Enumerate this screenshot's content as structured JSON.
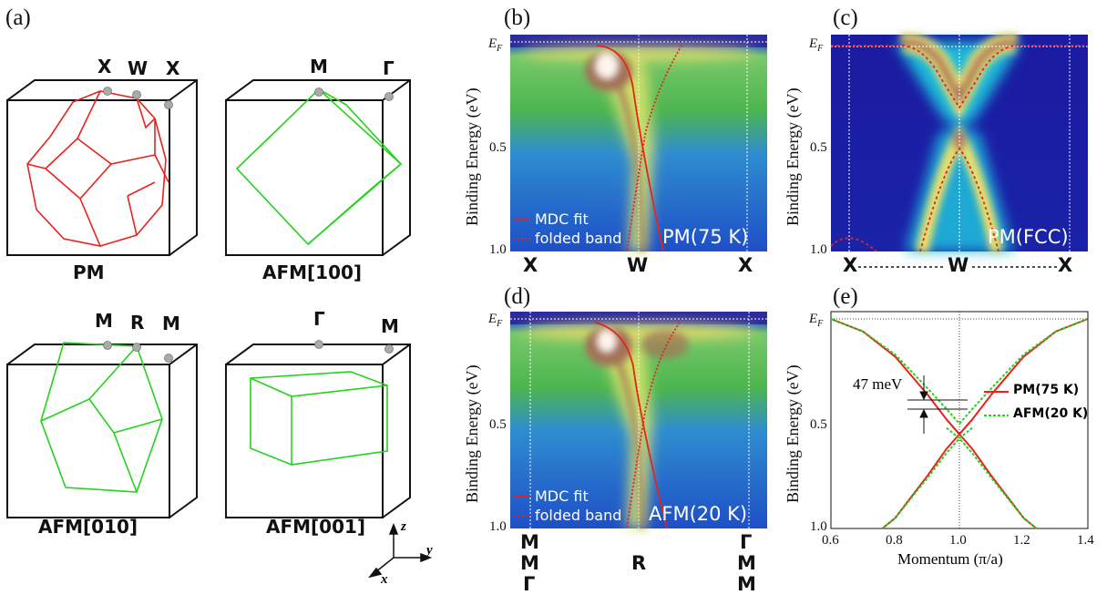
{
  "panels": {
    "a": {
      "letter": "(a)"
    },
    "b": {
      "letter": "(b)",
      "state": "PM(75 K)",
      "legend_fit": "MDC fit",
      "legend_folded": "folded band"
    },
    "c": {
      "letter": "(c)",
      "state": "PM(FCC)"
    },
    "d": {
      "letter": "(d)",
      "state": "AFM(20 K)",
      "legend_fit": "MDC fit",
      "legend_folded": "folded band"
    },
    "e": {
      "letter": "(e)"
    }
  },
  "bz": {
    "pm": {
      "name": "PM",
      "p1": "X",
      "p2": "W",
      "p3": "X"
    },
    "afm100": {
      "name": "AFM[100]",
      "p1": "M",
      "p2": "Γ"
    },
    "afm010": {
      "name": "AFM[010]",
      "p1": "M",
      "p2": "R",
      "p3": "M"
    },
    "afm001": {
      "name": "AFM[001]",
      "p1": "Γ",
      "p2": "M"
    },
    "axes": {
      "z": "z",
      "y": "y",
      "x": "x"
    }
  },
  "arpes": {
    "ylabel": "Binding Energy (eV)",
    "ef_main": "E",
    "ef_sub": "F",
    "tick_05": "0.5",
    "tick_10": "1.0",
    "b_k": {
      "left": "X",
      "mid": "W",
      "right": "X"
    },
    "c_k": {
      "left": "X",
      "mid": "W",
      "right": "X"
    },
    "d_k": {
      "left1": "M",
      "left2": "M",
      "left3": "Γ",
      "mid": "R",
      "right1": "Γ",
      "right2": "M",
      "right3": "M"
    }
  },
  "chart_data": {
    "type": "line",
    "xlabel": "Momentum (π/a)",
    "ylabel": "Binding Energy (eV)",
    "xlim": [
      0.6,
      1.4
    ],
    "ylim": [
      0,
      1.0
    ],
    "x_ticks": [
      "0.6",
      "0.8",
      "1.0",
      "1.2",
      "1.4"
    ],
    "y_ticks": [
      "E",
      "0.5",
      "1.0"
    ],
    "annotation": "47 meV",
    "series": [
      {
        "name": "PM(75 K)",
        "color": "#e8231c",
        "style": "solid",
        "x": [
          0.6,
          0.7,
          0.8,
          0.9,
          0.96,
          1.0,
          1.04,
          1.1,
          1.2,
          1.3,
          1.4
        ],
        "y": [
          0.0,
          0.06,
          0.18,
          0.36,
          0.48,
          0.55,
          0.48,
          0.36,
          0.18,
          0.06,
          0.0
        ]
      },
      {
        "name": "PM(75 K)",
        "color": "#e8231c",
        "style": "solid",
        "x": [
          0.96,
          1.0,
          1.04,
          1.1,
          1.2,
          1.24
        ],
        "y": [
          0.48,
          0.55,
          0.62,
          0.75,
          0.95,
          1.0
        ]
      },
      {
        "name": "AFM(20 K)",
        "color": "#22d31c",
        "style": "dashed",
        "x": [
          0.6,
          0.7,
          0.8,
          0.9,
          0.96,
          1.0,
          1.04,
          1.1,
          1.2,
          1.3,
          1.4
        ],
        "y": [
          0.0,
          0.06,
          0.17,
          0.33,
          0.43,
          0.5,
          0.43,
          0.33,
          0.17,
          0.06,
          0.0
        ]
      }
    ]
  }
}
